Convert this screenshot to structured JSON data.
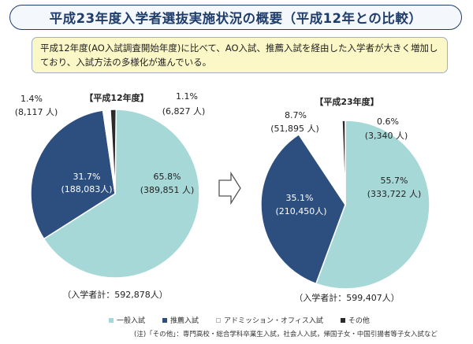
{
  "title": "平成23年度入学者選抜実施状況の概要（平成12年との比較）",
  "note": "平成12年度(AO入試調査開始年度)に比べて、AO入試、推薦入試を経由した入学者が大きく増加しており、入試方法の多様化が進んでいる。",
  "colors": {
    "general": "#a7d8d8",
    "recommendation": "#2d4f7f",
    "ao": "#ffffff",
    "other": "#2a2a2a"
  },
  "chart_data": [
    {
      "type": "pie",
      "title": "【平成12年度】",
      "total_label": "（入学者計：592,878人）",
      "slices": [
        {
          "name": "一般入試",
          "percent": 65.8,
          "percent_label": "65.8%",
          "count_label": "(389,851 人)"
        },
        {
          "name": "推薦入試",
          "percent": 31.7,
          "percent_label": "31.7%",
          "count_label": "(188,083人)"
        },
        {
          "name": "アドミッション・オフィス入試",
          "percent": 1.4,
          "percent_label": "1.4%",
          "count_label": "(8,117 人)"
        },
        {
          "name": "その他",
          "percent": 1.1,
          "percent_label": "1.1%",
          "count_label": "(6,827 人)"
        }
      ]
    },
    {
      "type": "pie",
      "title": "【平成23年度】",
      "total_label": "（入学者計：599,407人）",
      "slices": [
        {
          "name": "一般入試",
          "percent": 55.7,
          "percent_label": "55.7%",
          "count_label": "(333,722 人)"
        },
        {
          "name": "推薦入試",
          "percent": 35.1,
          "percent_label": "35.1%",
          "count_label": "(210,450人)"
        },
        {
          "name": "アドミッション・オフィス入試",
          "percent": 8.7,
          "percent_label": "8.7%",
          "count_label": "(51,895 人)"
        },
        {
          "name": "その他",
          "percent": 0.6,
          "percent_label": "0.6%",
          "count_label": "(3,340 人)"
        }
      ]
    }
  ],
  "legend": [
    {
      "label": "一般入試",
      "color_key": "general"
    },
    {
      "label": "推薦入試",
      "color_key": "recommendation"
    },
    {
      "label": "アドミッション・オフィス入試",
      "color_key": "ao"
    },
    {
      "label": "その他",
      "color_key": "other"
    }
  ],
  "footnote": "(注)「その他」：専門高校・総合学科卒業生入試，社会人入試，帰国子女・中国引揚者等子女入試など"
}
